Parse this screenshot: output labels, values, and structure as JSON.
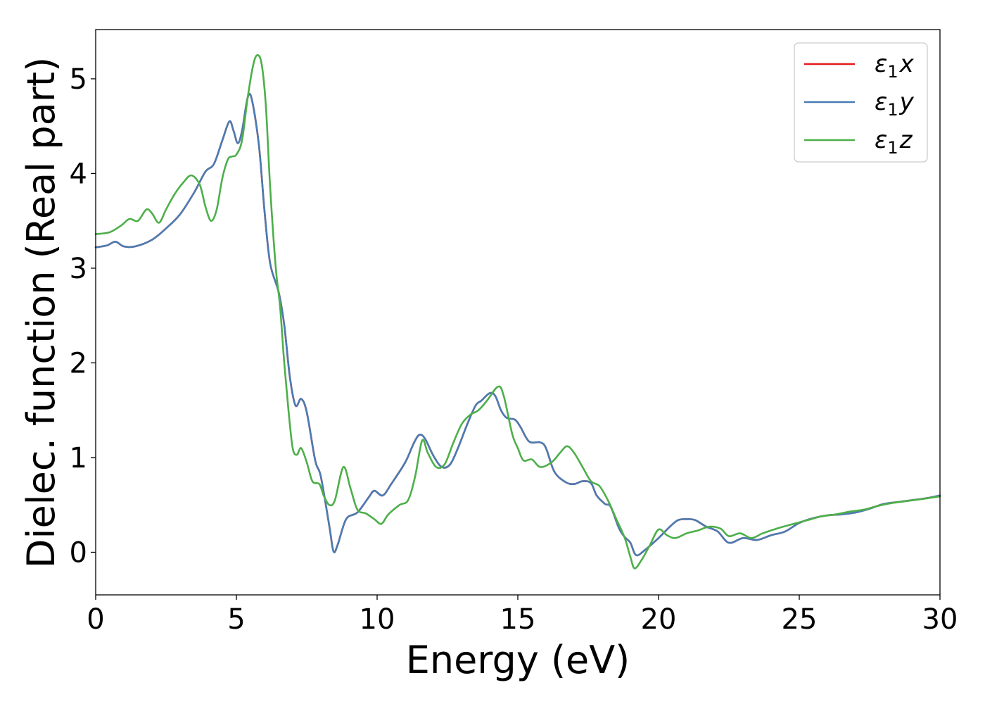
{
  "chart_data": {
    "type": "line",
    "title": "",
    "xlabel": "Energy (eV)",
    "ylabel": "Dielec. function (Real part)",
    "xlim": [
      0,
      30
    ],
    "ylim": [
      -0.45,
      5.52
    ],
    "xticks": [
      0,
      5,
      10,
      15,
      20,
      25,
      30
    ],
    "xtick_labels": [
      "0",
      "5",
      "10",
      "15",
      "20",
      "25",
      "30"
    ],
    "yticks": [
      0,
      1,
      2,
      3,
      4,
      5
    ],
    "ytick_labels": [
      "0",
      "1",
      "2",
      "3",
      "4",
      "5"
    ],
    "grid": false,
    "legend_position": "top-right",
    "series": [
      {
        "name": "ε1x",
        "legend_main": "ε",
        "legend_sub": "1",
        "legend_suffix": "x",
        "color": "#e41a1c",
        "points": [
          [
            0,
            3.22
          ],
          [
            0.4,
            3.24
          ],
          [
            0.7,
            3.28
          ],
          [
            1.0,
            3.23
          ],
          [
            1.4,
            3.23
          ],
          [
            2.0,
            3.3
          ],
          [
            2.5,
            3.42
          ],
          [
            3.0,
            3.57
          ],
          [
            3.5,
            3.8
          ],
          [
            3.9,
            4.02
          ],
          [
            4.2,
            4.1
          ],
          [
            4.5,
            4.35
          ],
          [
            4.75,
            4.55
          ],
          [
            4.9,
            4.45
          ],
          [
            5.05,
            4.32
          ],
          [
            5.2,
            4.45
          ],
          [
            5.4,
            4.8
          ],
          [
            5.55,
            4.78
          ],
          [
            5.8,
            4.3
          ],
          [
            6.0,
            3.6
          ],
          [
            6.2,
            3.05
          ],
          [
            6.5,
            2.75
          ],
          [
            6.7,
            2.4
          ],
          [
            6.9,
            1.85
          ],
          [
            7.1,
            1.55
          ],
          [
            7.3,
            1.62
          ],
          [
            7.5,
            1.48
          ],
          [
            7.8,
            0.97
          ],
          [
            8.0,
            0.8
          ],
          [
            8.3,
            0.28
          ],
          [
            8.45,
            0.01
          ],
          [
            8.6,
            0.08
          ],
          [
            8.9,
            0.35
          ],
          [
            9.3,
            0.42
          ],
          [
            9.7,
            0.58
          ],
          [
            9.9,
            0.65
          ],
          [
            10.2,
            0.6
          ],
          [
            10.5,
            0.72
          ],
          [
            11.0,
            0.95
          ],
          [
            11.3,
            1.15
          ],
          [
            11.5,
            1.24
          ],
          [
            11.7,
            1.2
          ],
          [
            12.0,
            1.02
          ],
          [
            12.3,
            0.9
          ],
          [
            12.6,
            0.93
          ],
          [
            12.9,
            1.12
          ],
          [
            13.2,
            1.35
          ],
          [
            13.5,
            1.55
          ],
          [
            13.7,
            1.6
          ],
          [
            14.0,
            1.68
          ],
          [
            14.2,
            1.65
          ],
          [
            14.4,
            1.5
          ],
          [
            14.6,
            1.42
          ],
          [
            14.9,
            1.4
          ],
          [
            15.1,
            1.32
          ],
          [
            15.4,
            1.17
          ],
          [
            15.8,
            1.16
          ],
          [
            16.0,
            1.1
          ],
          [
            16.3,
            0.85
          ],
          [
            16.7,
            0.74
          ],
          [
            17.0,
            0.72
          ],
          [
            17.3,
            0.75
          ],
          [
            17.6,
            0.73
          ],
          [
            17.8,
            0.6
          ],
          [
            18.1,
            0.51
          ],
          [
            18.3,
            0.48
          ],
          [
            18.6,
            0.25
          ],
          [
            18.8,
            0.16
          ],
          [
            19.0,
            0.1
          ],
          [
            19.2,
            -0.03
          ],
          [
            19.5,
            0.02
          ],
          [
            20.0,
            0.15
          ],
          [
            20.4,
            0.27
          ],
          [
            20.7,
            0.34
          ],
          [
            21.0,
            0.35
          ],
          [
            21.3,
            0.34
          ],
          [
            21.7,
            0.27
          ],
          [
            22.1,
            0.22
          ],
          [
            22.5,
            0.1
          ],
          [
            23.0,
            0.15
          ],
          [
            23.5,
            0.13
          ],
          [
            24.0,
            0.18
          ],
          [
            24.5,
            0.22
          ],
          [
            25.0,
            0.31
          ],
          [
            25.5,
            0.36
          ],
          [
            26.0,
            0.39
          ],
          [
            26.5,
            0.4
          ],
          [
            27.0,
            0.42
          ],
          [
            27.5,
            0.46
          ],
          [
            28.0,
            0.51
          ],
          [
            28.5,
            0.53
          ],
          [
            29.0,
            0.55
          ],
          [
            29.5,
            0.57
          ],
          [
            30.0,
            0.6
          ]
        ]
      },
      {
        "name": "ε1y",
        "legend_main": "ε",
        "legend_sub": "1",
        "legend_suffix": "y",
        "color": "#4a7cb3",
        "points": [
          [
            0,
            3.22
          ],
          [
            0.4,
            3.24
          ],
          [
            0.7,
            3.28
          ],
          [
            1.0,
            3.23
          ],
          [
            1.4,
            3.23
          ],
          [
            2.0,
            3.3
          ],
          [
            2.5,
            3.42
          ],
          [
            3.0,
            3.57
          ],
          [
            3.5,
            3.8
          ],
          [
            3.9,
            4.02
          ],
          [
            4.2,
            4.1
          ],
          [
            4.5,
            4.35
          ],
          [
            4.75,
            4.55
          ],
          [
            4.9,
            4.45
          ],
          [
            5.05,
            4.32
          ],
          [
            5.2,
            4.45
          ],
          [
            5.4,
            4.8
          ],
          [
            5.55,
            4.78
          ],
          [
            5.8,
            4.3
          ],
          [
            6.0,
            3.6
          ],
          [
            6.2,
            3.05
          ],
          [
            6.5,
            2.75
          ],
          [
            6.7,
            2.4
          ],
          [
            6.9,
            1.85
          ],
          [
            7.1,
            1.55
          ],
          [
            7.3,
            1.62
          ],
          [
            7.5,
            1.48
          ],
          [
            7.8,
            0.97
          ],
          [
            8.0,
            0.8
          ],
          [
            8.3,
            0.28
          ],
          [
            8.45,
            0.01
          ],
          [
            8.6,
            0.08
          ],
          [
            8.9,
            0.35
          ],
          [
            9.3,
            0.42
          ],
          [
            9.7,
            0.58
          ],
          [
            9.9,
            0.65
          ],
          [
            10.2,
            0.6
          ],
          [
            10.5,
            0.72
          ],
          [
            11.0,
            0.95
          ],
          [
            11.3,
            1.15
          ],
          [
            11.5,
            1.24
          ],
          [
            11.7,
            1.2
          ],
          [
            12.0,
            1.02
          ],
          [
            12.3,
            0.9
          ],
          [
            12.6,
            0.93
          ],
          [
            12.9,
            1.12
          ],
          [
            13.2,
            1.35
          ],
          [
            13.5,
            1.55
          ],
          [
            13.7,
            1.6
          ],
          [
            14.0,
            1.68
          ],
          [
            14.2,
            1.65
          ],
          [
            14.4,
            1.5
          ],
          [
            14.6,
            1.42
          ],
          [
            14.9,
            1.4
          ],
          [
            15.1,
            1.32
          ],
          [
            15.4,
            1.17
          ],
          [
            15.8,
            1.16
          ],
          [
            16.0,
            1.1
          ],
          [
            16.3,
            0.85
          ],
          [
            16.7,
            0.74
          ],
          [
            17.0,
            0.72
          ],
          [
            17.3,
            0.75
          ],
          [
            17.6,
            0.73
          ],
          [
            17.8,
            0.6
          ],
          [
            18.1,
            0.51
          ],
          [
            18.3,
            0.48
          ],
          [
            18.6,
            0.25
          ],
          [
            18.8,
            0.16
          ],
          [
            19.0,
            0.1
          ],
          [
            19.2,
            -0.03
          ],
          [
            19.5,
            0.02
          ],
          [
            20.0,
            0.15
          ],
          [
            20.4,
            0.27
          ],
          [
            20.7,
            0.34
          ],
          [
            21.0,
            0.35
          ],
          [
            21.3,
            0.34
          ],
          [
            21.7,
            0.27
          ],
          [
            22.1,
            0.22
          ],
          [
            22.5,
            0.1
          ],
          [
            23.0,
            0.15
          ],
          [
            23.5,
            0.13
          ],
          [
            24.0,
            0.18
          ],
          [
            24.5,
            0.22
          ],
          [
            25.0,
            0.31
          ],
          [
            25.5,
            0.36
          ],
          [
            26.0,
            0.39
          ],
          [
            26.5,
            0.4
          ],
          [
            27.0,
            0.42
          ],
          [
            27.5,
            0.46
          ],
          [
            28.0,
            0.51
          ],
          [
            28.5,
            0.53
          ],
          [
            29.0,
            0.55
          ],
          [
            29.5,
            0.57
          ],
          [
            30.0,
            0.6
          ]
        ]
      },
      {
        "name": "ε1z",
        "legend_main": "ε",
        "legend_sub": "1",
        "legend_suffix": "z",
        "color": "#4daf4a",
        "points": [
          [
            0,
            3.36
          ],
          [
            0.5,
            3.38
          ],
          [
            0.9,
            3.45
          ],
          [
            1.2,
            3.52
          ],
          [
            1.5,
            3.5
          ],
          [
            1.8,
            3.62
          ],
          [
            2.0,
            3.58
          ],
          [
            2.25,
            3.48
          ],
          [
            2.5,
            3.62
          ],
          [
            2.8,
            3.78
          ],
          [
            3.1,
            3.9
          ],
          [
            3.4,
            3.98
          ],
          [
            3.7,
            3.88
          ],
          [
            3.9,
            3.65
          ],
          [
            4.1,
            3.5
          ],
          [
            4.3,
            3.62
          ],
          [
            4.5,
            3.95
          ],
          [
            4.7,
            4.15
          ],
          [
            4.85,
            4.18
          ],
          [
            5.0,
            4.2
          ],
          [
            5.2,
            4.35
          ],
          [
            5.4,
            4.8
          ],
          [
            5.6,
            5.15
          ],
          [
            5.75,
            5.25
          ],
          [
            5.9,
            5.15
          ],
          [
            6.05,
            4.7
          ],
          [
            6.2,
            3.85
          ],
          [
            6.4,
            3.0
          ],
          [
            6.55,
            2.6
          ],
          [
            6.7,
            2.0
          ],
          [
            6.85,
            1.5
          ],
          [
            7.0,
            1.1
          ],
          [
            7.15,
            1.03
          ],
          [
            7.3,
            1.1
          ],
          [
            7.5,
            0.95
          ],
          [
            7.7,
            0.75
          ],
          [
            7.95,
            0.72
          ],
          [
            8.1,
            0.6
          ],
          [
            8.3,
            0.5
          ],
          [
            8.5,
            0.55
          ],
          [
            8.8,
            0.9
          ],
          [
            9.05,
            0.68
          ],
          [
            9.3,
            0.45
          ],
          [
            9.6,
            0.41
          ],
          [
            9.9,
            0.35
          ],
          [
            10.15,
            0.3
          ],
          [
            10.4,
            0.4
          ],
          [
            10.8,
            0.5
          ],
          [
            11.1,
            0.55
          ],
          [
            11.35,
            0.8
          ],
          [
            11.6,
            1.18
          ],
          [
            11.8,
            1.05
          ],
          [
            12.1,
            0.9
          ],
          [
            12.4,
            0.93
          ],
          [
            12.7,
            1.15
          ],
          [
            13.0,
            1.35
          ],
          [
            13.3,
            1.45
          ],
          [
            13.6,
            1.5
          ],
          [
            13.9,
            1.6
          ],
          [
            14.3,
            1.75
          ],
          [
            14.5,
            1.65
          ],
          [
            14.8,
            1.25
          ],
          [
            15.0,
            1.1
          ],
          [
            15.2,
            0.97
          ],
          [
            15.5,
            0.98
          ],
          [
            15.8,
            0.9
          ],
          [
            16.2,
            0.95
          ],
          [
            16.5,
            1.05
          ],
          [
            16.75,
            1.12
          ],
          [
            17.0,
            1.05
          ],
          [
            17.3,
            0.9
          ],
          [
            17.6,
            0.75
          ],
          [
            17.9,
            0.7
          ],
          [
            18.2,
            0.55
          ],
          [
            18.5,
            0.35
          ],
          [
            18.8,
            0.15
          ],
          [
            19.0,
            -0.05
          ],
          [
            19.15,
            -0.17
          ],
          [
            19.4,
            -0.08
          ],
          [
            19.7,
            0.08
          ],
          [
            20.0,
            0.24
          ],
          [
            20.3,
            0.18
          ],
          [
            20.6,
            0.15
          ],
          [
            21.0,
            0.2
          ],
          [
            21.4,
            0.23
          ],
          [
            21.8,
            0.27
          ],
          [
            22.2,
            0.25
          ],
          [
            22.5,
            0.17
          ],
          [
            22.9,
            0.2
          ],
          [
            23.3,
            0.15
          ],
          [
            23.7,
            0.2
          ],
          [
            24.2,
            0.25
          ],
          [
            24.8,
            0.3
          ],
          [
            25.3,
            0.34
          ],
          [
            25.8,
            0.38
          ],
          [
            26.3,
            0.4
          ],
          [
            26.8,
            0.43
          ],
          [
            27.3,
            0.45
          ],
          [
            27.8,
            0.49
          ],
          [
            28.3,
            0.52
          ],
          [
            28.8,
            0.54
          ],
          [
            29.3,
            0.56
          ],
          [
            30.0,
            0.59
          ]
        ]
      }
    ]
  }
}
